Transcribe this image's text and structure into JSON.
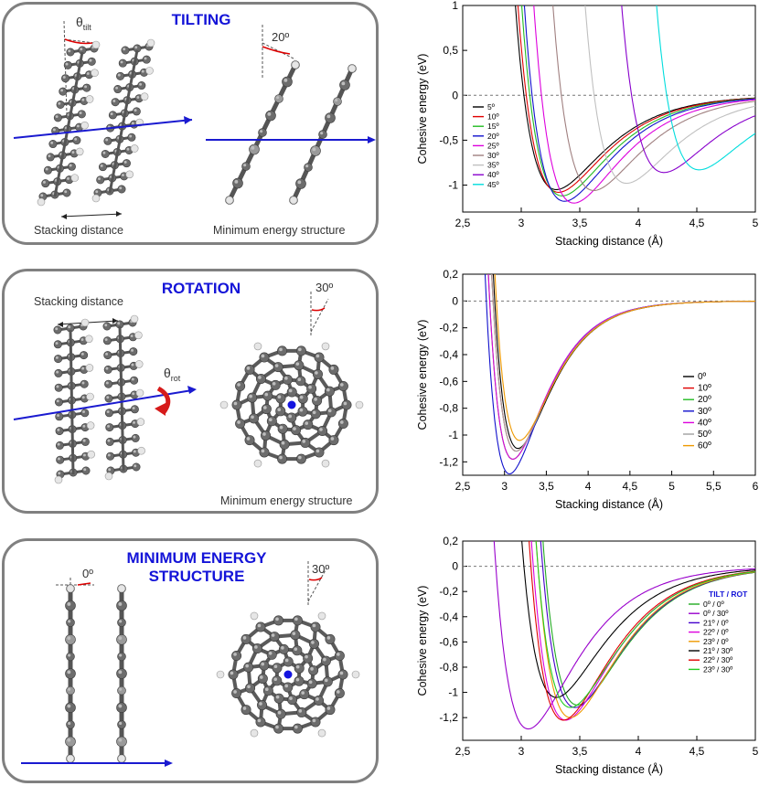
{
  "left_panels": [
    {
      "title": "TILTING",
      "angle_symbol": "θ",
      "angle_subscript": "tilt",
      "angle_value": "20º",
      "caption_left": "Stacking distance",
      "caption_right": "Minimum energy structure"
    },
    {
      "title": "ROTATION",
      "angle_symbol": "θ",
      "angle_subscript": "rot",
      "angle_value": "30º",
      "caption_left": "Stacking distance",
      "caption_right": "Minimum energy structure"
    },
    {
      "title_line1": "MINIMUM ENERGY",
      "title_line2": "STRUCTURE",
      "angle_left": "0º",
      "angle_right": "30º"
    }
  ],
  "chart_data": [
    {
      "type": "line",
      "xlabel": "Stacking distance (Å)",
      "ylabel": "Cohesive energy (eV)",
      "xlim": [
        2.5,
        5
      ],
      "ylim": [
        -1.3,
        1
      ],
      "xticks": [
        "2,5",
        "3",
        "3,5",
        "4",
        "4,5",
        "5"
      ],
      "yticks": [
        "1",
        "0,5",
        "0",
        "-0,5",
        "-1"
      ],
      "legend_title": "",
      "legend_position": "left",
      "series": [
        {
          "name": "5º",
          "color": "#000000",
          "min_x": 3.3,
          "min_y": -1.05
        },
        {
          "name": "10º",
          "color": "#e00000",
          "min_x": 3.32,
          "min_y": -1.08
        },
        {
          "name": "15º",
          "color": "#22bb22",
          "min_x": 3.35,
          "min_y": -1.12
        },
        {
          "name": "20º",
          "color": "#1010cc",
          "min_x": 3.37,
          "min_y": -1.18
        },
        {
          "name": "25º",
          "color": "#dd00dd",
          "min_x": 3.45,
          "min_y": -1.2
        },
        {
          "name": "30º",
          "color": "#a08080",
          "min_x": 3.62,
          "min_y": -1.06
        },
        {
          "name": "35º",
          "color": "#c0c0c0",
          "min_x": 3.9,
          "min_y": -0.98
        },
        {
          "name": "40º",
          "color": "#8800cc",
          "min_x": 4.22,
          "min_y": -0.86
        },
        {
          "name": "45º",
          "color": "#00dddd",
          "min_x": 4.52,
          "min_y": -0.83
        }
      ]
    },
    {
      "type": "line",
      "xlabel": "Stacking distance (Å)",
      "ylabel": "Cohesive energy (eV)",
      "xlim": [
        2.5,
        6
      ],
      "ylim": [
        -1.3,
        0.2
      ],
      "xticks": [
        "2,5",
        "3",
        "3,5",
        "4",
        "4,5",
        "5",
        "5,5",
        "6"
      ],
      "yticks": [
        "0,2",
        "0",
        "-0,2",
        "-0,4",
        "-0,6",
        "-0,8",
        "-1",
        "-1,2"
      ],
      "legend_title": "",
      "legend_position": "right",
      "series": [
        {
          "name": "0º",
          "color": "#000000",
          "min_x": 3.16,
          "min_y": -1.1
        },
        {
          "name": "10º",
          "color": "#e00000",
          "min_x": 3.14,
          "min_y": -1.12
        },
        {
          "name": "20º",
          "color": "#22bb22",
          "min_x": 3.1,
          "min_y": -1.18
        },
        {
          "name": "30º",
          "color": "#1010cc",
          "min_x": 3.06,
          "min_y": -1.29
        },
        {
          "name": "40º",
          "color": "#dd00dd",
          "min_x": 3.1,
          "min_y": -1.18
        },
        {
          "name": "50º",
          "color": "#a0a0a0",
          "min_x": 3.14,
          "min_y": -1.12
        },
        {
          "name": "60º",
          "color": "#ee9900",
          "min_x": 3.18,
          "min_y": -1.04
        }
      ]
    },
    {
      "type": "line",
      "xlabel": "Stacking distance (Å)",
      "ylabel": "Cohesive energy (eV)",
      "xlim": [
        2.5,
        5
      ],
      "ylim": [
        -1.38,
        0.2
      ],
      "xticks": [
        "2,5",
        "3",
        "3,5",
        "4",
        "4,5",
        "5"
      ],
      "yticks": [
        "0,2",
        "0",
        "-0,2",
        "-0,4",
        "-0,6",
        "-0,8",
        "-1",
        "-1,2"
      ],
      "legend_title": "TILT / ROT",
      "legend_position": "right",
      "series": [
        {
          "name": "0º / 0º",
          "color": "#22aa22",
          "min_x": 3.48,
          "min_y": -1.1
        },
        {
          "name": "0º / 30º",
          "color": "#9900cc",
          "min_x": 3.06,
          "min_y": -1.29
        },
        {
          "name": "21º / 0º",
          "color": "#4400cc",
          "min_x": 3.46,
          "min_y": -1.12
        },
        {
          "name": "22º / 0º",
          "color": "#dd00dd",
          "min_x": 3.38,
          "min_y": -1.22
        },
        {
          "name": "23º / 0º",
          "color": "#ee9900",
          "min_x": 3.42,
          "min_y": -1.2
        },
        {
          "name": "21º / 30º",
          "color": "#000000",
          "min_x": 3.3,
          "min_y": -1.04
        },
        {
          "name": "22º / 30º",
          "color": "#e00000",
          "min_x": 3.36,
          "min_y": -1.22
        },
        {
          "name": "23º / 30º",
          "color": "#22cc22",
          "min_x": 3.42,
          "min_y": -1.12
        }
      ]
    }
  ]
}
